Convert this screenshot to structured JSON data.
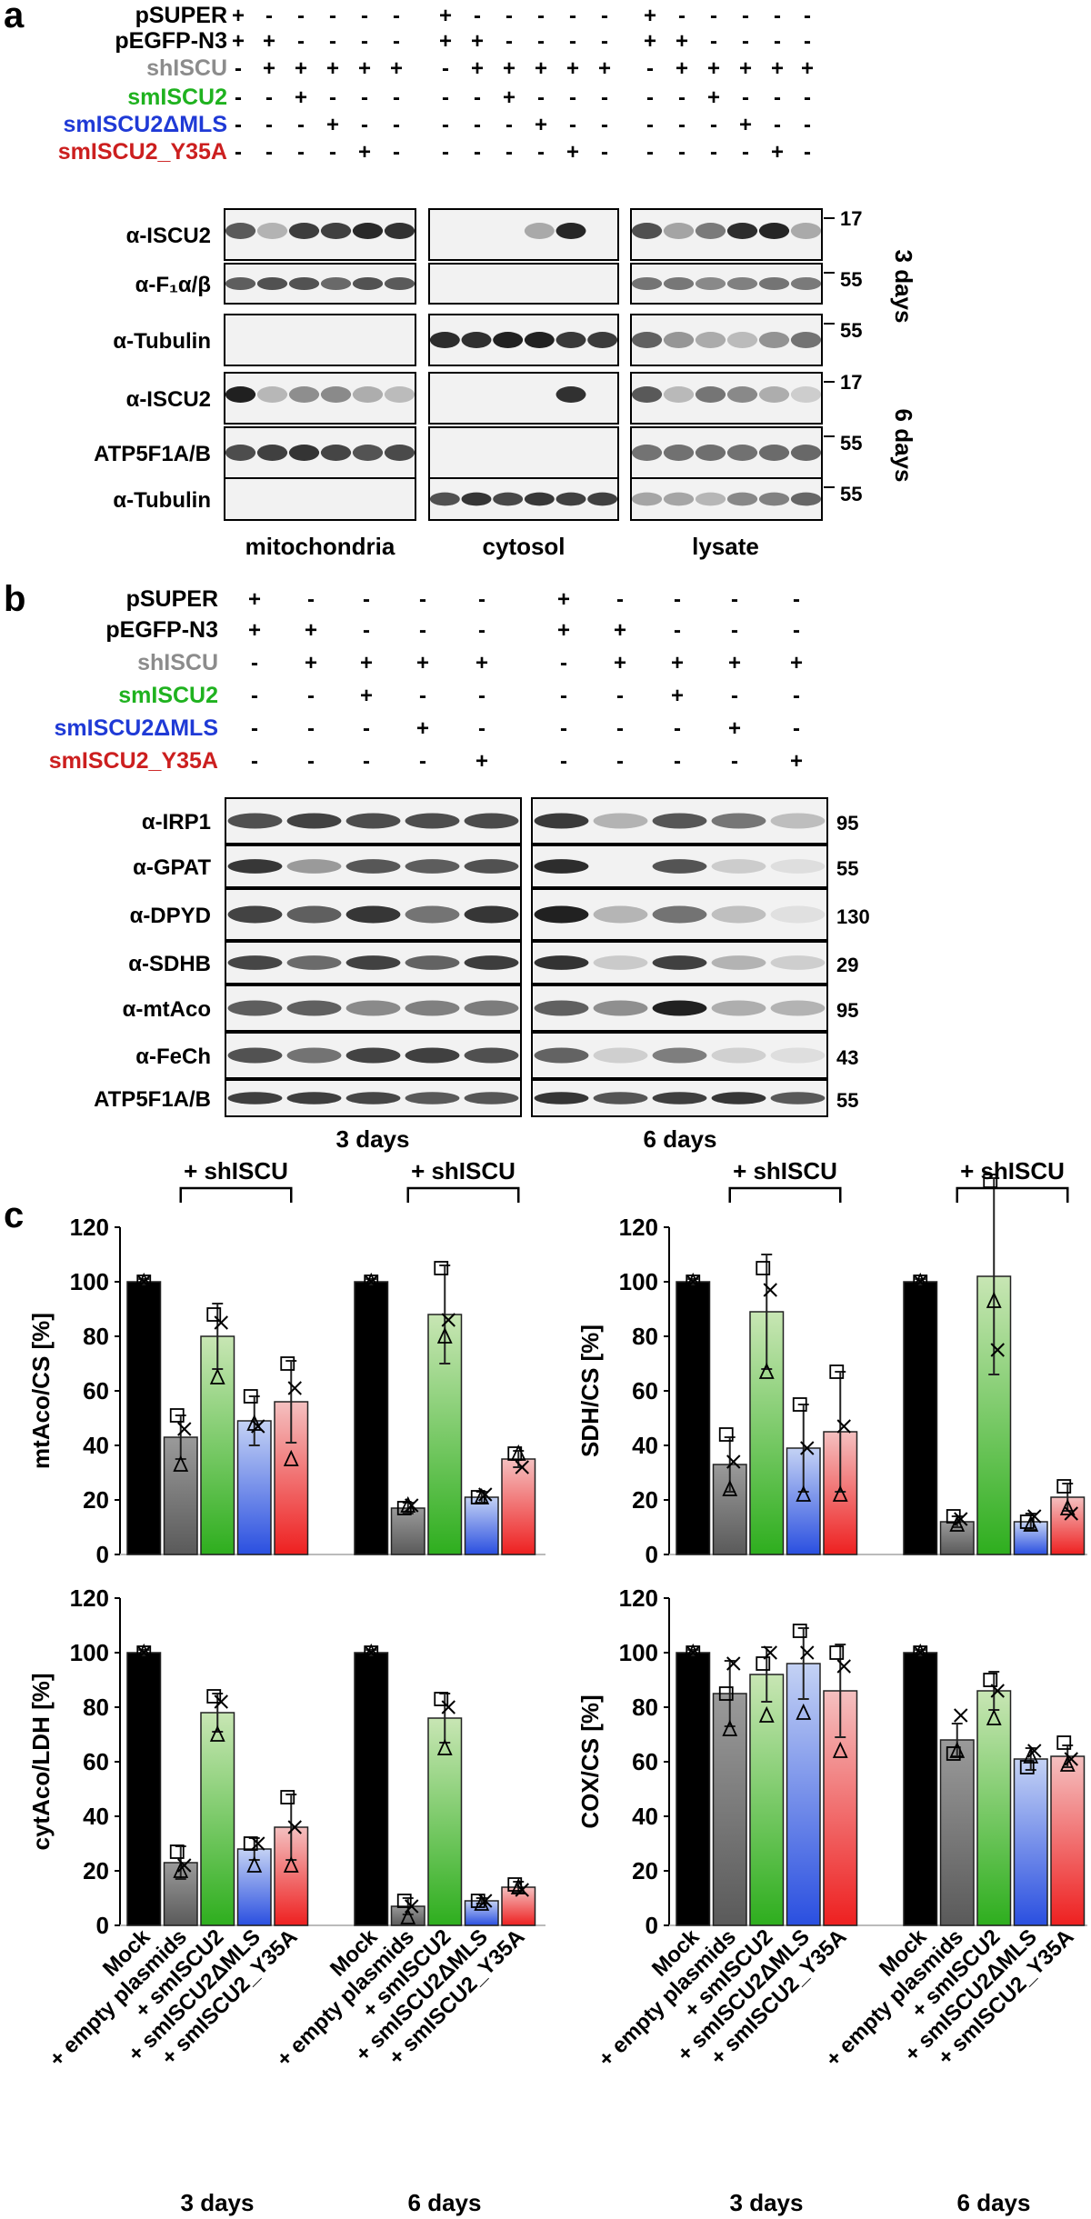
{
  "panel_a": {
    "letter": "a",
    "rows": [
      {
        "label": "pSUPER",
        "color": "#000000",
        "marks": [
          "+",
          "-",
          "-",
          "-",
          "-",
          "-",
          "+",
          "-",
          "-",
          "-",
          "-",
          "-",
          "+",
          "-",
          "-",
          "-",
          "-",
          "-"
        ]
      },
      {
        "label": "pEGFP-N3",
        "color": "#000000",
        "marks": [
          "+",
          "+",
          "-",
          "-",
          "-",
          "-",
          "+",
          "+",
          "-",
          "-",
          "-",
          "-",
          "+",
          "+",
          "-",
          "-",
          "-",
          "-"
        ]
      },
      {
        "label": "shISCU",
        "color": "#8c8c8c",
        "marks": [
          "-",
          "+",
          "+",
          "+",
          "+",
          "+",
          "-",
          "+",
          "+",
          "+",
          "+",
          "+",
          "-",
          "+",
          "+",
          "+",
          "+",
          "+"
        ]
      },
      {
        "label": "smISCU2",
        "color": "#1fb21f",
        "marks": [
          "-",
          "-",
          "+",
          "-",
          "-",
          "-",
          "-",
          "-",
          "+",
          "-",
          "-",
          "-",
          "-",
          "-",
          "+",
          "-",
          "-",
          "-"
        ]
      },
      {
        "label": "smISCU2ΔMLS",
        "color": "#1f3ad6",
        "marks": [
          "-",
          "-",
          "-",
          "+",
          "-",
          "-",
          "-",
          "-",
          "-",
          "+",
          "-",
          "-",
          "-",
          "-",
          "-",
          "+",
          "-",
          "-"
        ]
      },
      {
        "label": "smISCU2_Y35A",
        "color": "#cc1f1f",
        "marks": [
          "-",
          "-",
          "-",
          "-",
          "+",
          "-",
          "-",
          "-",
          "-",
          "-",
          "+",
          "-",
          "-",
          "-",
          "-",
          "-",
          "+",
          "-"
        ]
      }
    ],
    "blot_labels_3d": [
      "α-ISCU2",
      "α-F₁α/β",
      "α-Tubulin"
    ],
    "blot_labels_6d": [
      "α-ISCU2",
      "ATP5F1A/B",
      "α-Tubulin"
    ],
    "mw_3d": [
      "17",
      "55",
      "55"
    ],
    "mw_6d": [
      "17",
      "55",
      "55"
    ],
    "time_3d": "3 days",
    "time_6d": "6 days",
    "fractions": [
      "mitochondria",
      "cytosol",
      "lysate"
    ]
  },
  "panel_b": {
    "letter": "b",
    "rows": [
      {
        "label": "pSUPER",
        "color": "#000000",
        "marks": [
          "+",
          "-",
          "-",
          "-",
          "-",
          "+",
          "-",
          "-",
          "-",
          "-"
        ]
      },
      {
        "label": "pEGFP-N3",
        "color": "#000000",
        "marks": [
          "+",
          "+",
          "-",
          "-",
          "-",
          "+",
          "+",
          "-",
          "-",
          "-"
        ]
      },
      {
        "label": "shISCU",
        "color": "#8c8c8c",
        "marks": [
          "-",
          "+",
          "+",
          "+",
          "+",
          "-",
          "+",
          "+",
          "+",
          "+"
        ]
      },
      {
        "label": "smISCU2",
        "color": "#1fb21f",
        "marks": [
          "-",
          "-",
          "+",
          "-",
          "-",
          "-",
          "-",
          "+",
          "-",
          "-"
        ]
      },
      {
        "label": "smISCU2ΔMLS",
        "color": "#1f3ad6",
        "marks": [
          "-",
          "-",
          "-",
          "+",
          "-",
          "-",
          "-",
          "-",
          "+",
          "-"
        ]
      },
      {
        "label": "smISCU2_Y35A",
        "color": "#cc1f1f",
        "marks": [
          "-",
          "-",
          "-",
          "-",
          "+",
          "-",
          "-",
          "-",
          "-",
          "+"
        ]
      }
    ],
    "blot_labels": [
      "α-IRP1",
      "α-GPAT",
      "α-DPYD",
      "α-SDHB",
      "α-mtAco",
      "α-FeCh",
      "ATP5F1A/B"
    ],
    "mw": [
      "95",
      "55",
      "130",
      "29",
      "95",
      "43",
      "55"
    ],
    "time_labels": [
      "3 days",
      "6 days"
    ]
  },
  "panel_c": {
    "letter": "c",
    "bracket_label": "+ shISCU",
    "bar_colors": [
      "#000000",
      "#7a7a7a",
      "#58c04a",
      "#3f6fe0",
      "#e84848"
    ],
    "xtick_labels": [
      "Mock",
      "+ empty plasmids",
      "+ smISCU2",
      "+ smISCU2ΔMLS",
      "+ smISCU2_Y35A"
    ],
    "group_labels": [
      "3 days",
      "6 days"
    ]
  },
  "chart_data": [
    {
      "type": "bar",
      "ylabel": "mtAco/CS [%]",
      "ylim": [
        0,
        120
      ],
      "yticks": [
        "0",
        "20",
        "40",
        "60",
        "80",
        "100",
        "120"
      ],
      "categories": [
        "Mock",
        "+ empty plasmids",
        "+ smISCU2",
        "+ smISCU2ΔMLS",
        "+ smISCU2_Y35A"
      ],
      "series": [
        {
          "values": [
            100,
            43,
            80,
            49,
            56
          ],
          "errors": [
            1,
            8,
            12,
            9,
            15
          ]
        },
        {
          "values": [
            100,
            17,
            88,
            21,
            35
          ],
          "errors": [
            1,
            2,
            18,
            2,
            3
          ]
        }
      ],
      "replicates": [
        [
          [
            100,
            100,
            100
          ],
          [
            51,
            33,
            46
          ],
          [
            88,
            65,
            85
          ],
          [
            58,
            48,
            47
          ],
          [
            70,
            35,
            61
          ]
        ],
        [
          [
            100,
            100,
            100
          ],
          [
            17,
            18,
            18
          ],
          [
            105,
            80,
            86
          ],
          [
            21,
            21,
            22
          ],
          [
            37,
            37,
            32
          ]
        ]
      ]
    },
    {
      "type": "bar",
      "ylabel": "SDH/CS [%]",
      "ylim": [
        0,
        120
      ],
      "yticks": [
        "0",
        "20",
        "40",
        "60",
        "80",
        "100",
        "120"
      ],
      "categories": [
        "Mock",
        "+ empty plasmids",
        "+ smISCU2",
        "+ smISCU2ΔMLS",
        "+ smISCU2_Y35A"
      ],
      "series": [
        {
          "values": [
            100,
            33,
            89,
            39,
            45
          ],
          "errors": [
            1,
            10,
            21,
            16,
            22
          ]
        },
        {
          "values": [
            100,
            12,
            102,
            12,
            21
          ],
          "errors": [
            1,
            2,
            36,
            3,
            5
          ]
        }
      ],
      "replicates": [
        [
          [
            100,
            100,
            100
          ],
          [
            44,
            24,
            34
          ],
          [
            105,
            67,
            97
          ],
          [
            55,
            22,
            39
          ],
          [
            67,
            22,
            47
          ]
        ],
        [
          [
            100,
            100,
            100
          ],
          [
            14,
            11,
            13
          ],
          [
            137,
            93,
            75
          ],
          [
            12,
            11,
            14
          ],
          [
            25,
            17,
            15
          ]
        ]
      ]
    },
    {
      "type": "bar",
      "ylabel": "cytAco/LDH [%]",
      "ylim": [
        0,
        120
      ],
      "yticks": [
        "0",
        "20",
        "40",
        "60",
        "80",
        "100",
        "120"
      ],
      "categories": [
        "Mock",
        "+ empty plasmids",
        "+ smISCU2",
        "+ smISCU2ΔMLS",
        "+ smISCU2_Y35A"
      ],
      "series": [
        {
          "values": [
            100,
            23,
            78,
            28,
            36
          ],
          "errors": [
            1,
            6,
            7,
            4,
            12
          ]
        },
        {
          "values": [
            100,
            7,
            76,
            9,
            14
          ],
          "errors": [
            1,
            3,
            9,
            1,
            2
          ]
        }
      ],
      "replicates": [
        [
          [
            100,
            100,
            100
          ],
          [
            27,
            20,
            22
          ],
          [
            84,
            70,
            82
          ],
          [
            30,
            22,
            30
          ],
          [
            47,
            22,
            36
          ]
        ],
        [
          [
            100,
            100,
            100
          ],
          [
            9,
            3,
            7
          ],
          [
            83,
            65,
            80
          ],
          [
            9,
            8,
            9
          ],
          [
            15,
            14,
            13
          ]
        ]
      ]
    },
    {
      "type": "bar",
      "ylabel": "COX/CS [%]",
      "ylim": [
        0,
        120
      ],
      "yticks": [
        "0",
        "20",
        "40",
        "60",
        "80",
        "100",
        "120"
      ],
      "categories": [
        "Mock",
        "+ empty plasmids",
        "+ smISCU2",
        "+ smISCU2ΔMLS",
        "+ smISCU2_Y35A"
      ],
      "series": [
        {
          "values": [
            100,
            85,
            92,
            96,
            86
          ],
          "errors": [
            1,
            12,
            10,
            13,
            17
          ]
        },
        {
          "values": [
            100,
            68,
            86,
            61,
            62
          ],
          "errors": [
            1,
            6,
            7,
            4,
            4
          ]
        }
      ],
      "replicates": [
        [
          [
            100,
            100,
            100
          ],
          [
            85,
            72,
            96
          ],
          [
            96,
            77,
            100
          ],
          [
            108,
            78,
            100
          ],
          [
            100,
            64,
            95
          ]
        ],
        [
          [
            100,
            100,
            100
          ],
          [
            63,
            64,
            77
          ],
          [
            90,
            76,
            86
          ],
          [
            58,
            62,
            64
          ],
          [
            67,
            59,
            61
          ]
        ]
      ]
    }
  ]
}
